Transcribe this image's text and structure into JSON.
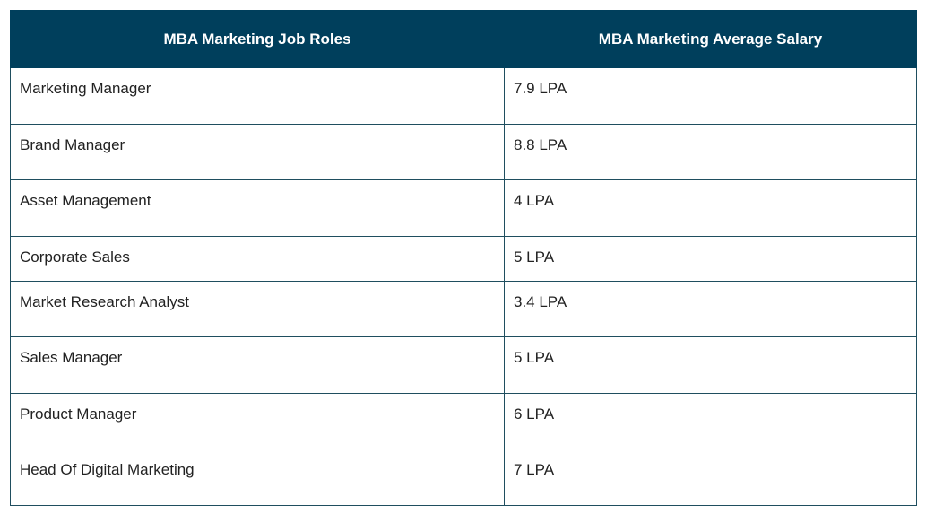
{
  "table": {
    "header": [
      "MBA Marketing Job Roles",
      "MBA Marketing Average Salary"
    ],
    "rows": [
      [
        "Marketing Manager",
        "7.9 LPA"
      ],
      [
        "Brand Manager",
        "8.8 LPA"
      ],
      [
        "Asset Management",
        "4 LPA"
      ],
      [
        "Corporate Sales",
        "5 LPA"
      ],
      [
        "Market Research Analyst",
        "3.4 LPA"
      ],
      [
        "Sales Manager",
        "5 LPA"
      ],
      [
        "Product Manager",
        "6 LPA"
      ],
      [
        "Head Of Digital Marketing",
        "7 LPA"
      ]
    ]
  }
}
